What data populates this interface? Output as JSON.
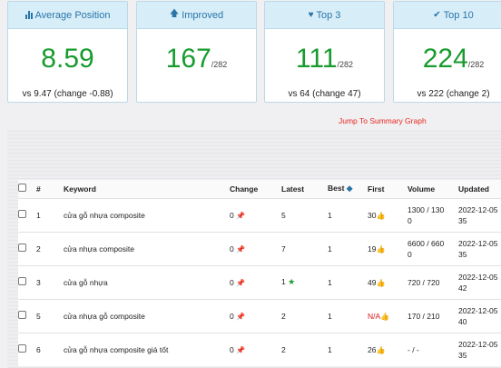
{
  "cards": [
    {
      "icon": "bar-chart-icon",
      "title": "Average Position",
      "value": "8.59",
      "total": "",
      "foot": "vs 9.47 (change -0.88)"
    },
    {
      "icon": "arrow-up-icon",
      "title": "Improved",
      "value": "167",
      "total": "/282",
      "foot": ""
    },
    {
      "icon": "heart-icon",
      "title": "Top 3",
      "value": "111",
      "total": "/282",
      "foot": "vs 64 (change 47)"
    },
    {
      "icon": "check-icon",
      "title": "Top 10",
      "value": "224",
      "total": "/282",
      "foot": "vs 222 (change 2)"
    }
  ],
  "jump_link": "Jump To Summary Graph",
  "table": {
    "headers": {
      "num": "#",
      "keyword": "Keyword",
      "change": "Change",
      "latest": "Latest",
      "best": "Best",
      "first": "First",
      "volume": "Volume",
      "updated": "Updated"
    },
    "rows": [
      {
        "num": "1",
        "keyword": "cửa gỗ nhựa composite",
        "change": "0",
        "latest": "5",
        "best": "1",
        "first": "30",
        "volume_1": "1300 / 130",
        "volume_2": "0",
        "updated_1": "2022-12-05",
        "updated_2": "35"
      },
      {
        "num": "2",
        "keyword": "cửa nhựa composite",
        "change": "0",
        "latest": "7",
        "best": "1",
        "first": "19",
        "volume_1": "6600 / 660",
        "volume_2": "0",
        "updated_1": "2022-12-05",
        "updated_2": "35"
      },
      {
        "num": "3",
        "keyword": "cửa gỗ nhựa",
        "change": "0",
        "latest": "1",
        "best": "1",
        "first": "49",
        "volume_1": "720 / 720",
        "volume_2": "",
        "updated_1": "2022-12-05",
        "updated_2": "42"
      },
      {
        "num": "5",
        "keyword": "cửa nhựa gỗ composite",
        "change": "0",
        "latest": "2",
        "best": "1",
        "first": "N/A",
        "volume_1": "170 / 210",
        "volume_2": "",
        "updated_1": "2022-12-05",
        "updated_2": "40"
      },
      {
        "num": "6",
        "keyword": "cửa gỗ nhựa composite giá tốt",
        "change": "0",
        "latest": "2",
        "best": "1",
        "first": "26",
        "volume_1": "- / -",
        "volume_2": "",
        "updated_1": "2022-12-05",
        "updated_2": "35"
      }
    ]
  },
  "colors": {
    "value_green": "#179b2d",
    "card_header": "#d7eef9",
    "header_text": "#2a74a8",
    "link_red": "#e8271f"
  }
}
